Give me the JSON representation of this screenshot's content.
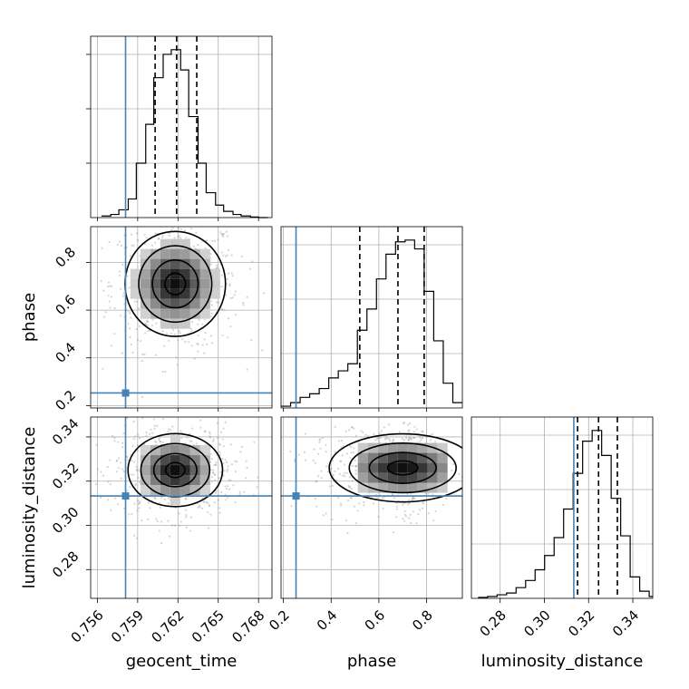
{
  "chart_data": {
    "type": "corner",
    "parameters": [
      "geocent_time",
      "phase",
      "luminosity_distance"
    ],
    "colors": {
      "truth": "#4682b4",
      "line": "#000000",
      "grid": "#b0b0b0"
    },
    "grid": true,
    "axes": {
      "geocent_time": {
        "range": [
          0.7555,
          0.769
        ],
        "ticks": [
          0.756,
          0.759,
          0.762,
          0.765,
          0.768
        ],
        "tick_labels": [
          "0.756",
          "0.759",
          "0.762",
          "0.765",
          "0.768"
        ]
      },
      "phase": {
        "range": [
          0.19,
          0.95
        ],
        "ticks": [
          0.2,
          0.4,
          0.6,
          0.8
        ],
        "tick_labels": [
          "0.2",
          "0.4",
          "0.6",
          "0.8"
        ]
      },
      "luminosity_distance": {
        "range": [
          0.267,
          0.349
        ],
        "ticks": [
          0.28,
          0.3,
          0.32,
          0.34
        ],
        "tick_labels": [
          "0.28",
          "0.30",
          "0.32",
          "0.34"
        ]
      }
    },
    "truths": {
      "geocent_time": 0.7581,
      "phase": 0.2528,
      "luminosity_distance": 0.3133
    },
    "quantiles": {
      "geocent_time": [
        0.7603,
        0.7619,
        0.7634
      ],
      "phase": [
        0.52,
        0.68,
        0.79
      ],
      "luminosity_distance": [
        0.315,
        0.3245,
        0.333
      ]
    },
    "histograms": {
      "geocent_time": {
        "bin_edges": [
          0.7563,
          0.757,
          0.7576,
          0.7583,
          0.7589,
          0.7596,
          0.7602,
          0.7609,
          0.7615,
          0.7622,
          0.7628,
          0.7635,
          0.7641,
          0.7648,
          0.7654,
          0.7661,
          0.7667,
          0.7674,
          0.768,
          0.7687
        ],
        "counts": [
          1,
          2,
          5,
          12,
          35,
          60,
          90,
          105,
          108,
          95,
          65,
          35,
          16,
          8,
          4,
          2,
          1,
          0.4,
          0
        ]
      },
      "phase": {
        "bin_edges": [
          0.19,
          0.23,
          0.27,
          0.31,
          0.35,
          0.39,
          0.43,
          0.47,
          0.51,
          0.55,
          0.59,
          0.63,
          0.67,
          0.71,
          0.75,
          0.79,
          0.83,
          0.87,
          0.91,
          0.95
        ],
        "counts": [
          1,
          3,
          6,
          8,
          11,
          17,
          21,
          25,
          44,
          56,
          73,
          87,
          94,
          95,
          90,
          66,
          38,
          14,
          3
        ]
      },
      "luminosity_distance": {
        "bin_edges": [
          0.27,
          0.2743,
          0.2786,
          0.2829,
          0.2872,
          0.2915,
          0.2958,
          0.3001,
          0.3044,
          0.3087,
          0.313,
          0.3173,
          0.3216,
          0.3259,
          0.3302,
          0.3345,
          0.3388,
          0.3431,
          0.3474,
          0.349
        ],
        "counts": [
          0.5,
          1,
          2,
          3,
          6,
          10,
          16,
          24,
          34,
          50,
          70,
          88,
          94,
          80,
          56,
          35,
          12,
          4,
          1
        ]
      }
    },
    "pairs": [
      {
        "x": "geocent_time",
        "y": "phase",
        "center": [
          0.7618,
          0.71
        ],
        "spread": [
          0.0017,
          0.1
        ]
      },
      {
        "x": "geocent_time",
        "y": "luminosity_distance",
        "center": [
          0.7618,
          0.325
        ],
        "spread": [
          0.0016,
          0.0075
        ]
      },
      {
        "x": "phase",
        "y": "luminosity_distance",
        "center": [
          0.7,
          0.326
        ],
        "spread": [
          0.14,
          0.007
        ]
      }
    ]
  }
}
